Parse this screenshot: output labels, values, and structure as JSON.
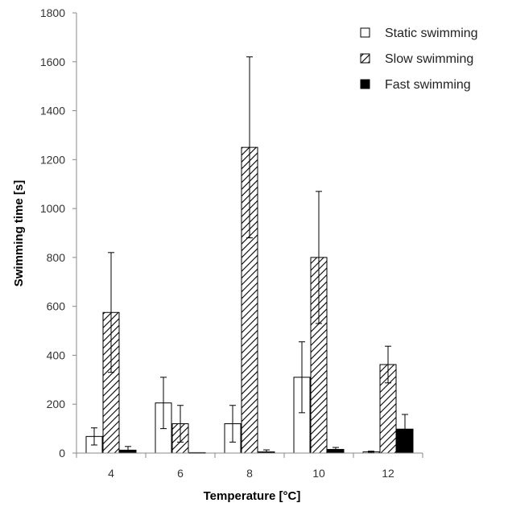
{
  "chart_data": {
    "type": "bar",
    "xlabel": "Temperature [°C]",
    "ylabel": "Swimming time [s]",
    "ylim": [
      0,
      1800
    ],
    "yticks": [
      0,
      200,
      400,
      600,
      800,
      1000,
      1200,
      1400,
      1600,
      1800
    ],
    "grid": false,
    "legend_position": "top-right",
    "categories": [
      "4",
      "6",
      "8",
      "10",
      "12"
    ],
    "series": [
      {
        "name": "Static swimming",
        "fill": "white",
        "values": [
          68,
          205,
          120,
          310,
          5
        ],
        "errors": [
          35,
          105,
          75,
          145,
          3
        ]
      },
      {
        "name": "Slow swimming",
        "fill": "hatch",
        "values": [
          575,
          120,
          1250,
          800,
          362
        ],
        "errors": [
          245,
          75,
          370,
          270,
          75
        ]
      },
      {
        "name": "Fast swimming",
        "fill": "black",
        "values": [
          12,
          2,
          5,
          15,
          98
        ],
        "errors": [
          15,
          0,
          8,
          8,
          60
        ]
      }
    ]
  }
}
